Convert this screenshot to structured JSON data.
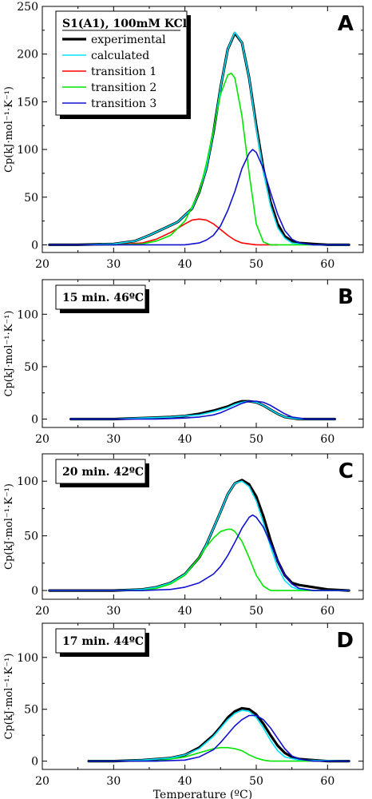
{
  "chart_data": [
    {
      "type": "line",
      "panel_label": "A",
      "ylabel": "Cp(kJ·mol⁻¹·K⁻¹)",
      "xlabel": "",
      "xlim": [
        20,
        65
      ],
      "ylim": [
        -8,
        250
      ],
      "x_ticks": [
        20,
        30,
        40,
        50,
        60
      ],
      "y_ticks": [
        0,
        50,
        100,
        150,
        200,
        250
      ],
      "legend": {
        "title": "S1(A1), 100mM KCl",
        "placement": "top-left",
        "entries": [
          "experimental",
          "calculated",
          "transition 1",
          "transition 2",
          "transition 3"
        ]
      },
      "series": [
        {
          "name": "experimental",
          "color": "#000000",
          "x": [
            21,
            25,
            30,
            33,
            35,
            37,
            39,
            41,
            42,
            43,
            44,
            45,
            46,
            47,
            48,
            49,
            50,
            51,
            52,
            53,
            54,
            55,
            56,
            58,
            60,
            63
          ],
          "y": [
            0,
            0,
            1,
            4,
            10,
            17,
            24,
            38,
            55,
            80,
            118,
            165,
            205,
            222,
            212,
            175,
            125,
            80,
            45,
            22,
            9,
            4,
            2,
            1,
            0,
            0
          ]
        },
        {
          "name": "calculated",
          "color": "#00e5ff",
          "x": [
            21,
            25,
            30,
            33,
            35,
            37,
            39,
            41,
            42,
            43,
            44,
            45,
            46,
            47,
            48,
            49,
            50,
            51,
            52,
            53,
            54,
            55,
            56,
            58,
            60,
            63
          ],
          "y": [
            0,
            0,
            1,
            4,
            10,
            17,
            24,
            38,
            55,
            80,
            118,
            165,
            205,
            223,
            212,
            175,
            122,
            77,
            41,
            18,
            7,
            2,
            1,
            0,
            0,
            0
          ]
        },
        {
          "name": "transition 1",
          "color": "#ff0000",
          "x": [
            21,
            30,
            34,
            36,
            38,
            40,
            41,
            42,
            43,
            44,
            45,
            46,
            47,
            48,
            49,
            50,
            51,
            53
          ],
          "y": [
            0,
            0,
            2,
            6,
            13,
            22,
            26,
            27,
            26,
            22,
            16,
            10,
            5,
            2,
            1,
            0,
            0,
            0
          ]
        },
        {
          "name": "transition 2",
          "color": "#00e600",
          "x": [
            21,
            30,
            34,
            36,
            38,
            40,
            42,
            43,
            44,
            45,
            46,
            46.5,
            47,
            48,
            49,
            50,
            51,
            52,
            55,
            63
          ],
          "y": [
            0,
            0,
            1,
            4,
            10,
            25,
            55,
            85,
            120,
            158,
            178,
            180,
            175,
            135,
            75,
            22,
            3,
            0,
            0,
            0
          ]
        },
        {
          "name": "transition 3",
          "color": "#1010d0",
          "x": [
            21,
            40,
            42,
            43,
            44,
            45,
            46,
            47,
            48,
            49,
            49.5,
            50,
            51,
            52,
            53,
            54,
            55,
            56,
            58,
            63
          ],
          "y": [
            0,
            0,
            2,
            5,
            10,
            20,
            36,
            56,
            80,
            96,
            100,
            97,
            80,
            55,
            32,
            15,
            6,
            2,
            0,
            0
          ]
        }
      ]
    },
    {
      "type": "line",
      "panel_label": "B",
      "ylabel": "Cp(kJ·mol⁻¹·K⁻¹)",
      "xlabel": "",
      "xlim": [
        20,
        65
      ],
      "ylim": [
        -8,
        133
      ],
      "x_ticks": [
        20,
        30,
        40,
        50,
        60
      ],
      "y_ticks": [
        0,
        50,
        100
      ],
      "legend": {
        "title": "15 min. 46ºC",
        "placement": "top-left",
        "entries": []
      },
      "series": [
        {
          "color": "#000000",
          "x": [
            24,
            30,
            34,
            38,
            40,
            42,
            44,
            46,
            47,
            48,
            49,
            50,
            51,
            52,
            53,
            54,
            56,
            58,
            61
          ],
          "y": [
            0,
            0,
            1,
            2,
            3,
            5,
            8,
            12,
            15,
            17,
            17,
            16,
            13,
            9,
            5,
            2,
            0,
            0,
            0
          ]
        },
        {
          "color": "#00e5ff",
          "x": [
            24,
            30,
            34,
            38,
            40,
            42,
            44,
            46,
            47,
            48,
            49,
            50,
            51,
            52,
            53,
            54,
            56,
            58,
            61
          ],
          "y": [
            0,
            0,
            1,
            2,
            3,
            4,
            7,
            11,
            14,
            16,
            17,
            16,
            13,
            9,
            5,
            2,
            0,
            0,
            0
          ]
        },
        {
          "color": "#1010d0",
          "x": [
            24,
            36,
            40,
            42,
            44,
            45,
            46,
            47,
            48,
            49,
            50,
            51,
            52,
            53,
            54,
            55,
            57,
            61
          ],
          "y": [
            0,
            0,
            1,
            2,
            4,
            6,
            9,
            12,
            15,
            17,
            17,
            16,
            13,
            9,
            5,
            2,
            0,
            0
          ]
        }
      ]
    },
    {
      "type": "line",
      "panel_label": "C",
      "ylabel": "Cp(kJ·mol⁻¹·K⁻¹)",
      "xlabel": "",
      "xlim": [
        20,
        65
      ],
      "ylim": [
        -8,
        125
      ],
      "x_ticks": [
        20,
        30,
        40,
        50,
        60
      ],
      "y_ticks": [
        0,
        50,
        100
      ],
      "legend": {
        "title": "20 min. 42ºC",
        "placement": "top-left",
        "entries": []
      },
      "series": [
        {
          "color": "#000000",
          "x": [
            21,
            25,
            30,
            34,
            36,
            38,
            40,
            42,
            43,
            44,
            45,
            46,
            47,
            48,
            49,
            50,
            51,
            52,
            53,
            54,
            55,
            56,
            58,
            60,
            63
          ],
          "y": [
            0,
            0,
            0,
            1,
            3,
            7,
            15,
            30,
            42,
            57,
            72,
            88,
            98,
            101,
            97,
            86,
            68,
            46,
            27,
            14,
            7,
            5,
            3,
            1,
            0
          ]
        },
        {
          "color": "#00e5ff",
          "x": [
            21,
            25,
            30,
            34,
            36,
            38,
            40,
            42,
            43,
            44,
            45,
            46,
            47,
            48,
            49,
            50,
            51,
            52,
            53,
            54,
            55,
            56,
            58,
            63
          ],
          "y": [
            0,
            0,
            0,
            1,
            3,
            7,
            15,
            30,
            42,
            57,
            72,
            88,
            98,
            100,
            95,
            82,
            62,
            40,
            21,
            9,
            3,
            1,
            0,
            0
          ]
        },
        {
          "color": "#00e600",
          "x": [
            21,
            34,
            36,
            38,
            40,
            42,
            43,
            44,
            45,
            46,
            46.5,
            47,
            48,
            49,
            50,
            51,
            52,
            55,
            63
          ],
          "y": [
            0,
            0,
            2,
            6,
            14,
            30,
            40,
            48,
            54,
            56,
            56,
            54,
            45,
            30,
            14,
            4,
            0,
            0,
            0
          ]
        },
        {
          "color": "#1010d0",
          "x": [
            21,
            34,
            38,
            40,
            42,
            44,
            45,
            46,
            47,
            48,
            49,
            49.5,
            50,
            51,
            52,
            53,
            54,
            55,
            56,
            58,
            63
          ],
          "y": [
            0,
            0,
            1,
            3,
            7,
            15,
            22,
            32,
            44,
            57,
            67,
            69,
            67,
            58,
            43,
            27,
            14,
            6,
            2,
            0,
            0
          ]
        }
      ]
    },
    {
      "type": "line",
      "panel_label": "D",
      "ylabel": "Cp(kJ·mol⁻¹·K⁻¹)",
      "xlabel": "Temperature (ºC)",
      "xlim": [
        20,
        65
      ],
      "ylim": [
        -8,
        133
      ],
      "x_ticks": [
        20,
        30,
        40,
        50,
        60
      ],
      "y_ticks": [
        0,
        50,
        100
      ],
      "legend": {
        "title": "17 min. 44ºC",
        "placement": "top-left",
        "entries": []
      },
      "series": [
        {
          "color": "#000000",
          "x": [
            26.5,
            30,
            34,
            38,
            40,
            42,
            44,
            45,
            46,
            47,
            48,
            49,
            50,
            51,
            52,
            53,
            54,
            55,
            56,
            58,
            60,
            63
          ],
          "y": [
            0,
            0,
            1,
            3,
            6,
            13,
            25,
            33,
            42,
            48,
            51,
            50,
            45,
            36,
            25,
            15,
            8,
            4,
            2,
            1,
            0,
            0
          ]
        },
        {
          "color": "#00e5ff",
          "x": [
            26.5,
            30,
            34,
            38,
            40,
            42,
            44,
            45,
            46,
            47,
            48,
            49,
            50,
            51,
            52,
            53,
            54,
            56,
            63
          ],
          "y": [
            0,
            0,
            1,
            3,
            6,
            12,
            24,
            32,
            40,
            46,
            49,
            48,
            42,
            32,
            20,
            10,
            4,
            1,
            0
          ]
        },
        {
          "color": "#00e600",
          "x": [
            26.5,
            36,
            38,
            40,
            42,
            44,
            45,
            46,
            47,
            48,
            49,
            50,
            51,
            52,
            55,
            63
          ],
          "y": [
            0,
            0,
            2,
            4,
            8,
            12,
            13,
            13,
            12,
            10,
            6,
            3,
            1,
            0,
            0,
            0
          ]
        },
        {
          "color": "#1010d0",
          "x": [
            26.5,
            36,
            40,
            42,
            44,
            45,
            46,
            47,
            48,
            49,
            50,
            51,
            52,
            53,
            54,
            55,
            56,
            58,
            63
          ],
          "y": [
            0,
            0,
            1,
            4,
            11,
            18,
            26,
            34,
            40,
            44,
            44,
            40,
            32,
            22,
            12,
            5,
            2,
            0,
            0
          ]
        }
      ]
    }
  ]
}
